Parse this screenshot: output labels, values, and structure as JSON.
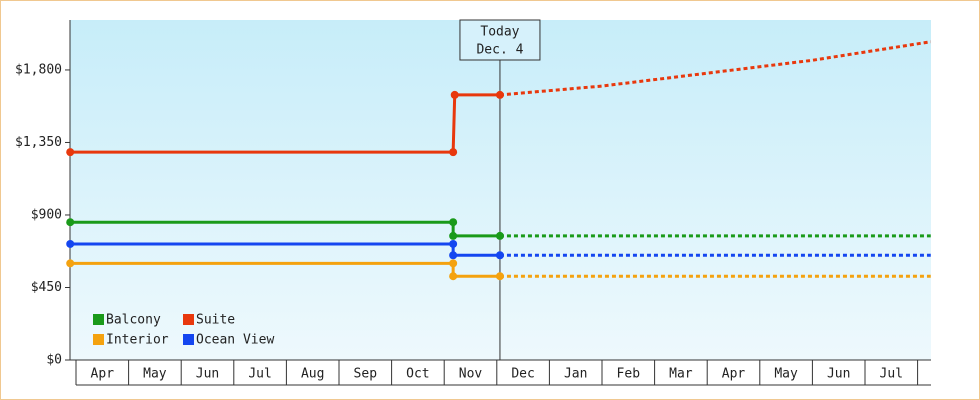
{
  "chart_data": {
    "type": "step-line",
    "categories": [
      "Apr",
      "May",
      "Jun",
      "Jul",
      "Aug",
      "Sep",
      "Oct",
      "Nov",
      "Dec",
      "Jan",
      "Feb",
      "Mar",
      "Apr",
      "May",
      "Jun",
      "Jul"
    ],
    "xlim": [
      -0.11,
      16.25
    ],
    "ylim": [
      0,
      2110
    ],
    "yticks": [
      {
        "value": 0,
        "label": "$0"
      },
      {
        "value": 450,
        "label": "$450"
      },
      {
        "value": 900,
        "label": "$900"
      },
      {
        "value": 1350,
        "label": "$1,350"
      },
      {
        "value": 1800,
        "label": "$1,800"
      }
    ],
    "today": {
      "x": 8.06,
      "label": [
        "Today",
        "Dec. 4"
      ]
    },
    "series": [
      {
        "name": "Balcony",
        "color": "#1a9a1a",
        "x": [
          -0.11,
          7.17,
          7.17,
          8.06
        ],
        "values": [
          855,
          855,
          770,
          770
        ],
        "forecast_x": [
          8.06,
          16.25
        ],
        "forecast_values": [
          770,
          770
        ]
      },
      {
        "name": "Suite",
        "color": "#e8380d",
        "x": [
          -0.11,
          7.17,
          7.2,
          8.06
        ],
        "values": [
          1290,
          1290,
          1645,
          1645
        ],
        "forecast_x": [
          8.06,
          10,
          12,
          14,
          16.25
        ],
        "forecast_values": [
          1645,
          1700,
          1780,
          1860,
          1975
        ]
      },
      {
        "name": "Interior",
        "color": "#f4a20f",
        "x": [
          -0.11,
          7.17,
          7.17,
          8.06
        ],
        "values": [
          600,
          600,
          520,
          520
        ],
        "forecast_x": [
          8.06,
          16.25
        ],
        "forecast_values": [
          520,
          520
        ]
      },
      {
        "name": "Ocean View",
        "color": "#1446f0",
        "x": [
          -0.11,
          7.17,
          7.17,
          8.06
        ],
        "values": [
          720,
          720,
          650,
          650
        ],
        "forecast_x": [
          8.06,
          16.25
        ],
        "forecast_values": [
          650,
          650
        ]
      }
    ]
  }
}
